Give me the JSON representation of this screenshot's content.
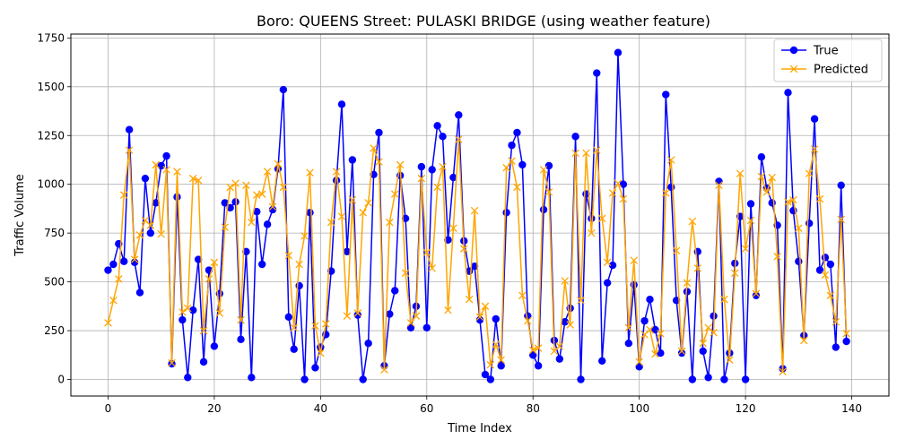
{
  "chart_data": {
    "type": "line",
    "title": "Boro: QUEENS Street: PULASKI BRIDGE (using weather feature)",
    "xlabel": "Time Index",
    "ylabel": "Traffic Volume",
    "xlim": [
      -7,
      147
    ],
    "ylim": [
      -85,
      1770
    ],
    "xticks": [
      0,
      20,
      40,
      60,
      80,
      100,
      120,
      140
    ],
    "yticks": [
      0,
      250,
      500,
      750,
      1000,
      1250,
      1500,
      1750
    ],
    "grid": true,
    "legend_position": "top-right",
    "series": [
      {
        "name": "True",
        "color": "#0000ff",
        "marker": "circle",
        "values": [
          560,
          590,
          695,
          605,
          1280,
          600,
          445,
          1030,
          750,
          905,
          1095,
          1145,
          80,
          935,
          305,
          10,
          355,
          615,
          90,
          560,
          170,
          440,
          905,
          880,
          910,
          205,
          655,
          10,
          860,
          590,
          795,
          870,
          1080,
          1485,
          320,
          155,
          480,
          0,
          855,
          60,
          165,
          230,
          555,
          1020,
          1410,
          655,
          1125,
          330,
          0,
          185,
          1050,
          1265,
          70,
          335,
          455,
          1045,
          825,
          265,
          375,
          1090,
          265,
          1075,
          1300,
          1245,
          715,
          1035,
          1355,
          710,
          555,
          580,
          305,
          25,
          0,
          310,
          70,
          855,
          1200,
          1265,
          1100,
          325,
          125,
          70,
          870,
          1095,
          200,
          105,
          295,
          365,
          1245,
          0,
          950,
          825,
          1570,
          95,
          495,
          585,
          1675,
          1000,
          185,
          485,
          65,
          300,
          410,
          255,
          135,
          1460,
          985,
          405,
          135,
          450,
          0,
          655,
          145,
          10,
          325,
          1015,
          0,
          135,
          595,
          835,
          0,
          900,
          430,
          1140,
          980,
          905,
          790,
          55,
          1470,
          865,
          605,
          225,
          800,
          1335,
          560,
          625,
          590,
          165,
          995,
          195
        ]
      },
      {
        "name": "Predicted",
        "color": "#ffa500",
        "marker": "x",
        "values": [
          290,
          405,
          515,
          945,
          1175,
          615,
          740,
          815,
          790,
          1100,
          745,
          1075,
          85,
          1065,
          345,
          365,
          1030,
          1020,
          250,
          515,
          600,
          340,
          780,
          985,
          1005,
          305,
          995,
          805,
          945,
          950,
          1065,
          885,
          1105,
          985,
          635,
          265,
          590,
          735,
          1060,
          275,
          135,
          285,
          805,
          1065,
          835,
          325,
          920,
          340,
          855,
          905,
          1185,
          1115,
          50,
          805,
          950,
          1100,
          545,
          290,
          325,
          1030,
          650,
          570,
          985,
          1090,
          355,
          775,
          1230,
          670,
          410,
          865,
          320,
          375,
          75,
          180,
          100,
          1085,
          1120,
          985,
          430,
          300,
          150,
          160,
          1075,
          960,
          145,
          170,
          505,
          280,
          1160,
          405,
          1160,
          750,
          1175,
          825,
          600,
          955,
          1005,
          925,
          265,
          610,
          90,
          230,
          255,
          130,
          235,
          955,
          1125,
          660,
          145,
          495,
          810,
          570,
          185,
          265,
          240,
          995,
          410,
          100,
          545,
          1055,
          670,
          815,
          440,
          1040,
          960,
          1035,
          630,
          40,
          910,
          920,
          775,
          200,
          1055,
          1180,
          925,
          535,
          430,
          295,
          820,
          235
        ]
      }
    ]
  }
}
